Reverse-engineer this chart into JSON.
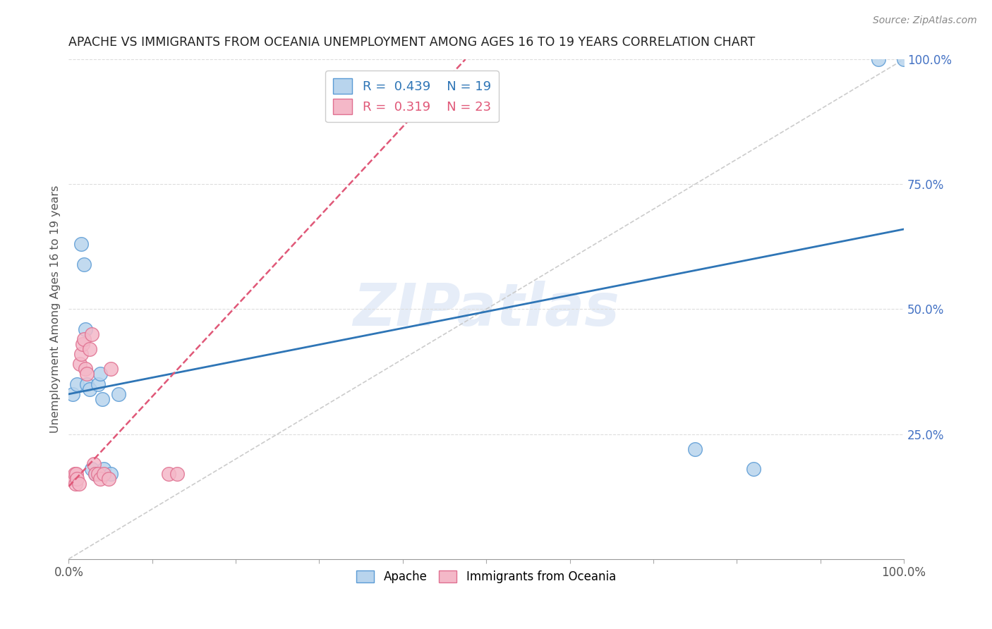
{
  "title": "APACHE VS IMMIGRANTS FROM OCEANIA UNEMPLOYMENT AMONG AGES 16 TO 19 YEARS CORRELATION CHART",
  "source": "Source: ZipAtlas.com",
  "xlabel": "",
  "ylabel": "Unemployment Among Ages 16 to 19 years",
  "xlim": [
    0,
    1.0
  ],
  "ylim": [
    0,
    1.0
  ],
  "xtick_positions": [
    0.0,
    0.1,
    0.2,
    0.3,
    0.4,
    0.5,
    0.6,
    0.7,
    0.8,
    0.9,
    1.0
  ],
  "xticklabels_major": {
    "0.0": "0.0%",
    "0.5": "",
    "1.0": "100.0%"
  },
  "ytick_positions": [
    0.25,
    0.5,
    0.75,
    1.0
  ],
  "yticklabels_right": [
    "25.0%",
    "50.0%",
    "75.0%",
    "100.0%"
  ],
  "watermark": "ZIPatlas",
  "legend_apache_R": "0.439",
  "legend_apache_N": "19",
  "legend_oceania_R": "0.319",
  "legend_oceania_N": "23",
  "apache_color": "#b8d4ed",
  "apache_edge_color": "#5b9bd5",
  "apache_line_color": "#2e75b6",
  "oceania_color": "#f4b8c8",
  "oceania_edge_color": "#e07090",
  "oceania_line_color": "#e05878",
  "diagonal_color": "#cccccc",
  "grid_color": "#dddddd",
  "apache_x": [
    0.005,
    0.01,
    0.015,
    0.018,
    0.02,
    0.022,
    0.025,
    0.028,
    0.032,
    0.035,
    0.038,
    0.04,
    0.042,
    0.05,
    0.06,
    0.75,
    0.82,
    0.97,
    1.0
  ],
  "apache_y": [
    0.33,
    0.35,
    0.63,
    0.59,
    0.46,
    0.35,
    0.34,
    0.18,
    0.17,
    0.35,
    0.37,
    0.32,
    0.18,
    0.17,
    0.33,
    0.22,
    0.18,
    1.0,
    1.0
  ],
  "oceania_x": [
    0.005,
    0.007,
    0.008,
    0.009,
    0.01,
    0.012,
    0.013,
    0.015,
    0.017,
    0.018,
    0.02,
    0.022,
    0.025,
    0.028,
    0.03,
    0.032,
    0.035,
    0.038,
    0.042,
    0.048,
    0.05,
    0.12,
    0.13
  ],
  "oceania_y": [
    0.16,
    0.17,
    0.15,
    0.17,
    0.16,
    0.15,
    0.39,
    0.41,
    0.43,
    0.44,
    0.38,
    0.37,
    0.42,
    0.45,
    0.19,
    0.17,
    0.17,
    0.16,
    0.17,
    0.16,
    0.38,
    0.17,
    0.17
  ],
  "apache_line_intercept": 0.33,
  "apache_line_slope": 0.33,
  "oceania_line_intercept": 0.145,
  "oceania_line_slope": 1.8
}
